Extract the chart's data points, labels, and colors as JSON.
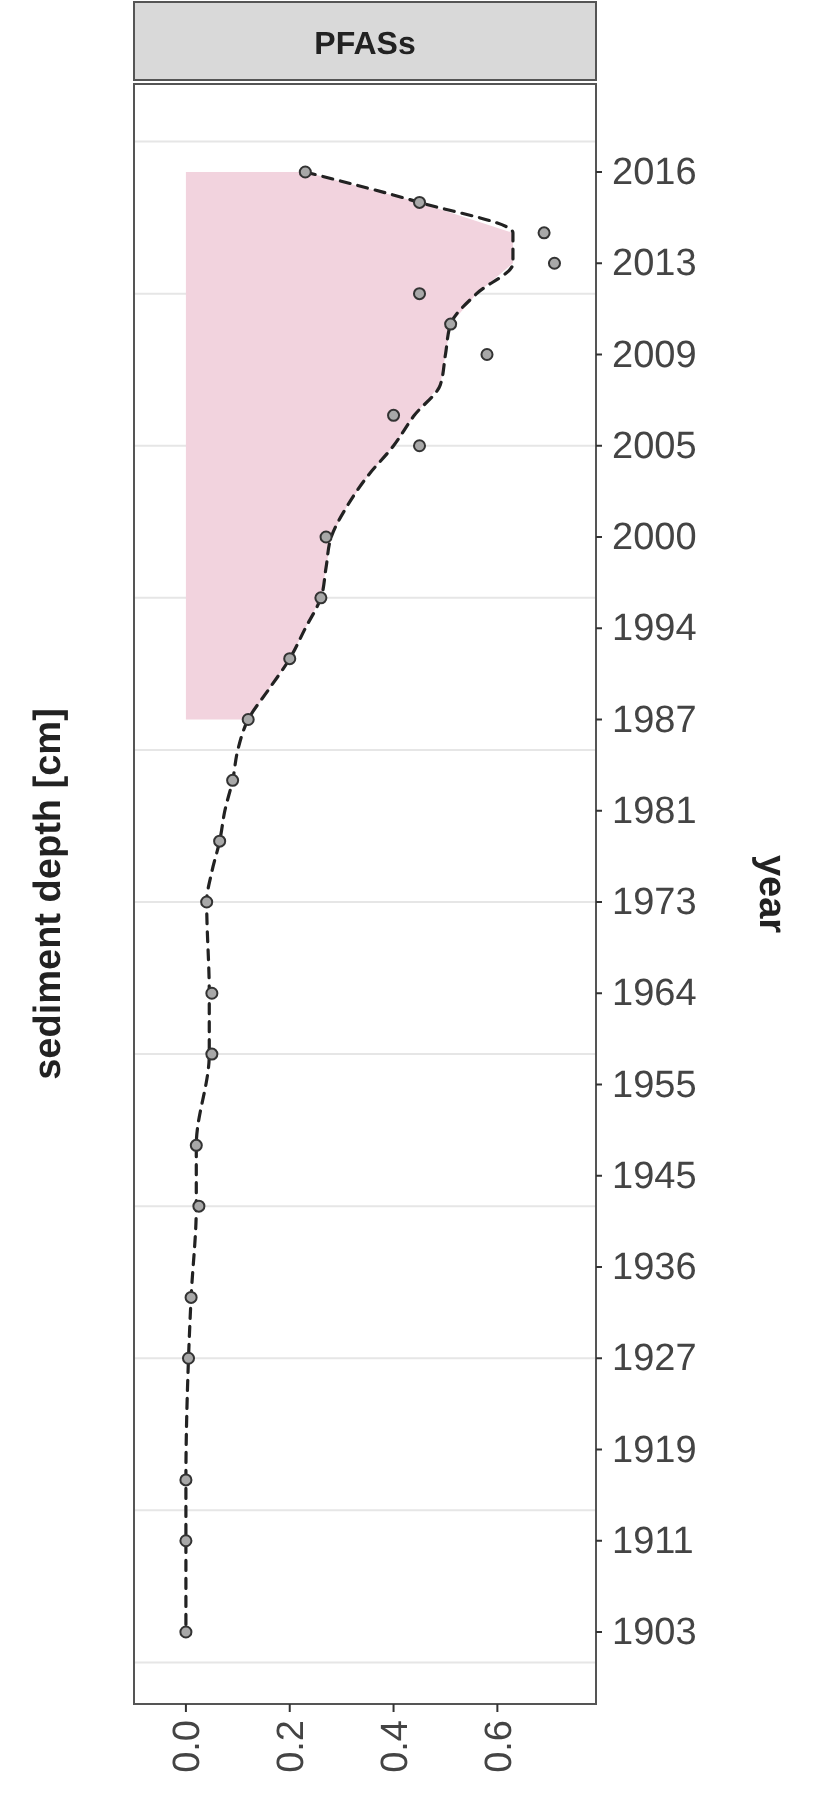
{
  "chart_data": {
    "type": "line",
    "orientation": "horizontal",
    "title": "PFASs",
    "ylabel": "sediment depth [cm]",
    "y2label": "year",
    "categories": [
      "2016",
      null,
      null,
      "2013",
      null,
      null,
      "2009",
      null,
      null,
      "2005",
      null,
      null,
      "2000",
      null,
      null,
      "1994",
      null,
      null,
      "1987",
      null,
      null,
      "1981",
      null,
      null,
      "1973",
      null,
      null,
      "1964",
      null,
      null,
      "1955",
      null,
      null,
      "1945",
      null,
      null,
      "1936",
      null,
      null,
      "1927",
      null,
      null,
      "1919",
      null,
      null,
      "1911",
      null,
      null,
      "1903"
    ],
    "xlim": [
      -0.1,
      0.79
    ],
    "xticks": [
      {
        "value": 0,
        "label": "0.0"
      },
      {
        "value": 0.2,
        "label": "0.2"
      },
      {
        "value": 0.4,
        "label": "0.4"
      },
      {
        "value": 0.6,
        "label": "0.6"
      }
    ],
    "grid": "y",
    "series": [
      {
        "type": "area",
        "color": "#f2d3de",
        "values": [
          0.23,
          0.45,
          0.63,
          0.63,
          0.56,
          0.51,
          0.5,
          0.49,
          0.44,
          0.4,
          0.35,
          0.31,
          0.28,
          0.27,
          0.26,
          0.23,
          0.2,
          0.16,
          0.12,
          null,
          null,
          null,
          null,
          null,
          null,
          null,
          null,
          null,
          null,
          null,
          null,
          null,
          null,
          null,
          null,
          null,
          null,
          null,
          null,
          null,
          null,
          null,
          null,
          null,
          null,
          null,
          null,
          null,
          null
        ]
      },
      {
        "color": "#222222",
        "line_style": "dashed",
        "values": [
          0.23,
          0.45,
          0.63,
          0.63,
          0.56,
          0.51,
          0.5,
          0.49,
          0.44,
          0.4,
          0.35,
          0.31,
          0.28,
          0.27,
          0.26,
          0.23,
          0.2,
          0.16,
          0.12,
          0.1,
          0.09,
          0.075,
          0.065,
          0.05,
          0.04,
          null,
          null,
          0.045,
          null,
          0.045,
          null,
          null,
          0.02,
          null,
          0.02,
          null,
          null,
          0.01,
          null,
          0.005,
          null,
          null,
          null,
          0,
          null,
          0,
          null,
          null,
          0
        ]
      },
      {
        "type": "scatter",
        "color": "#a8a8a8",
        "marker": "circle",
        "values": [
          0.23,
          0.45,
          0.69,
          0.71,
          0.45,
          0.51,
          0.58,
          null,
          0.4,
          0.45,
          null,
          null,
          0.27,
          null,
          0.26,
          null,
          0.2,
          null,
          0.12,
          null,
          0.09,
          null,
          0.065,
          null,
          0.04,
          null,
          null,
          0.05,
          null,
          0.05,
          null,
          null,
          0.02,
          null,
          0.025,
          null,
          null,
          0.01,
          null,
          0.005,
          null,
          null,
          null,
          0,
          null,
          0,
          null,
          null,
          0
        ]
      }
    ]
  }
}
